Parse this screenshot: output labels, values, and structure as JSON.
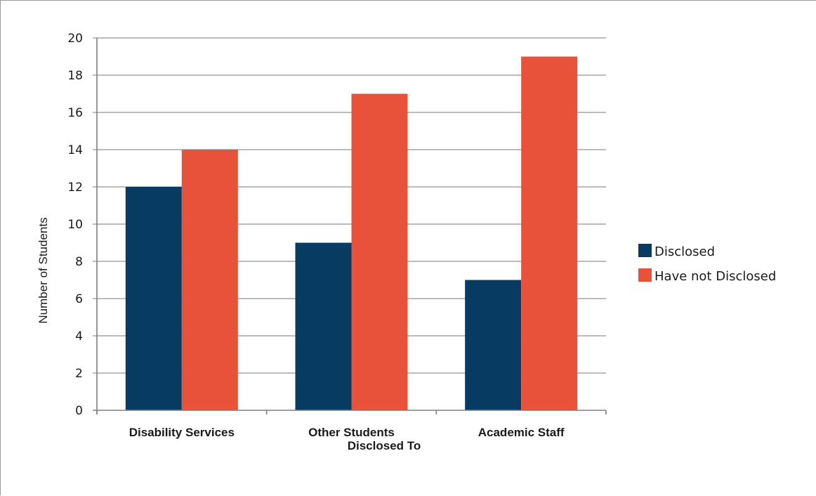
{
  "chart_data": {
    "type": "bar",
    "title": "",
    "xlabel": "Disclosed To",
    "ylabel": "Number of Students",
    "categories": [
      "Disability Services",
      "Other Students",
      "Academic Staff"
    ],
    "series": [
      {
        "name": "Disclosed",
        "values": [
          12,
          9,
          7
        ],
        "color": "#073b62"
      },
      {
        "name": "Have not Disclosed",
        "values": [
          14,
          17,
          19
        ],
        "color": "#e9523a"
      }
    ],
    "ylim": [
      0,
      20
    ],
    "yticks": [
      0,
      2,
      4,
      6,
      8,
      10,
      12,
      14,
      16,
      18,
      20
    ],
    "grid": true,
    "legend_position": "right"
  }
}
